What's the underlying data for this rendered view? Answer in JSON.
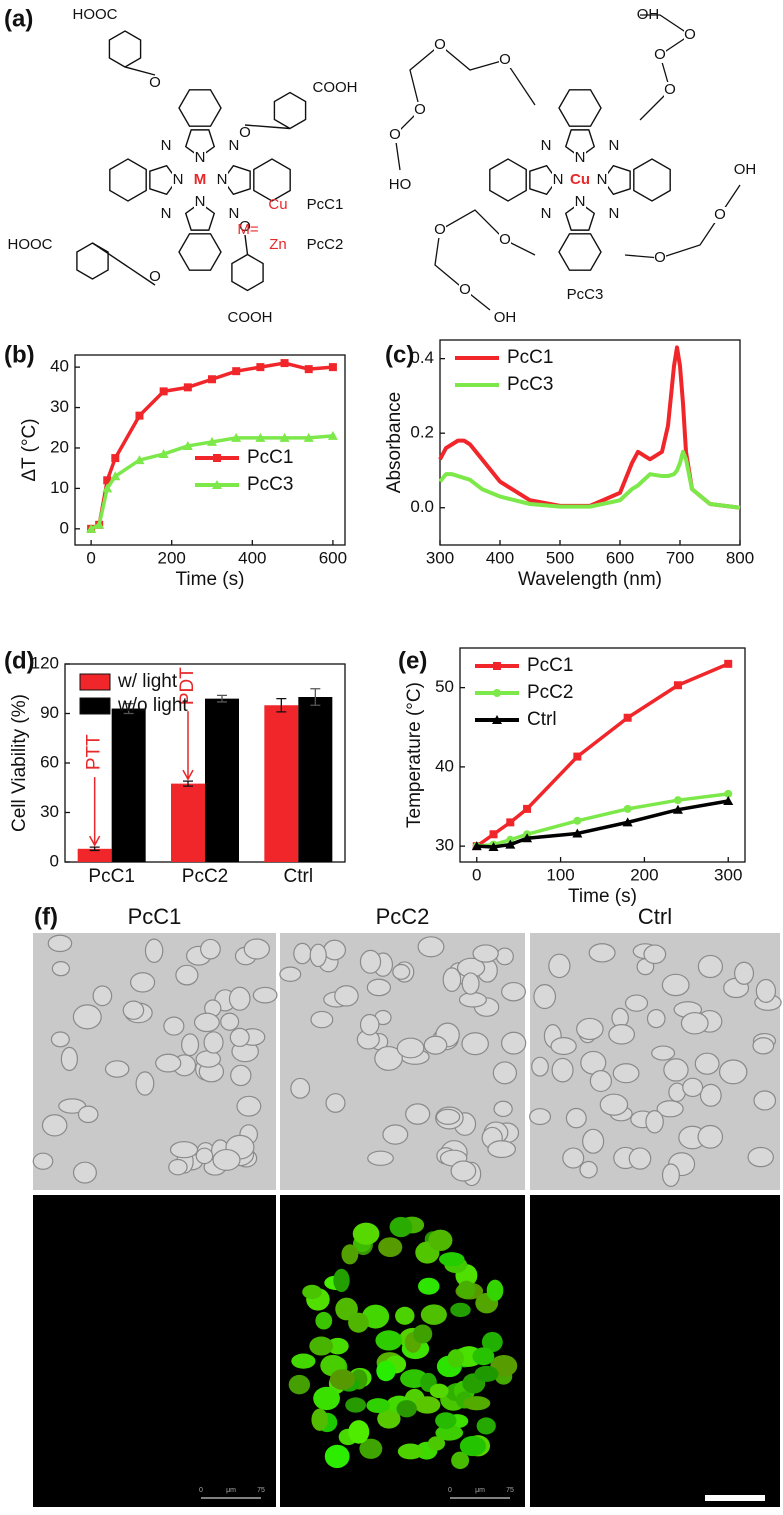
{
  "structures": {
    "label": "(a)",
    "left": {
      "groups": [
        "HOOC",
        "COOH",
        "HOOC",
        "COOH"
      ],
      "metal": "M",
      "equals": "M=",
      "metal_options": [
        "Cu",
        "Zn"
      ],
      "names": [
        "PcC1",
        "PcC2"
      ],
      "ring_atoms": [
        "N",
        "N",
        "N",
        "N",
        "N",
        "N",
        "N",
        "N"
      ],
      "linkers": [
        "O",
        "O",
        "O",
        "O"
      ]
    },
    "right": {
      "groups": [
        "HO",
        "OH",
        "OH",
        "OH"
      ],
      "metal": "Cu",
      "name": "PcC3",
      "ring_atoms": [
        "N",
        "N",
        "N",
        "N",
        "N",
        "N",
        "N",
        "N"
      ],
      "linkers": [
        "O",
        "O",
        "O",
        "O",
        "O",
        "O",
        "O",
        "O",
        "O",
        "O",
        "O",
        "O"
      ]
    }
  },
  "chart_data": [
    {
      "type": "line",
      "panel_label": "(b)",
      "x_label": "Time (s)",
      "y_label": "ΔT (°C)",
      "x": [
        0,
        20,
        40,
        60,
        120,
        180,
        240,
        300,
        360,
        420,
        480,
        540,
        600
      ],
      "series": [
        {
          "name": "PcC1",
          "color": "#f0262a",
          "marker": "square",
          "values": [
            0,
            1,
            12,
            17.5,
            28,
            34,
            35,
            37,
            39,
            40,
            41,
            39.5,
            40
          ]
        },
        {
          "name": "PcC3",
          "color": "#7de84a",
          "marker": "triangle",
          "values": [
            0,
            1,
            10,
            13,
            17,
            18.5,
            20.5,
            21.5,
            22.5,
            22.5,
            22.5,
            22.5,
            23
          ]
        }
      ],
      "xlim": [
        -40,
        630
      ],
      "ylim": [
        -4,
        43
      ],
      "xticks": [
        0,
        200,
        400,
        600
      ],
      "yticks": [
        0,
        10,
        20,
        30,
        40
      ],
      "legend": "lower right"
    },
    {
      "type": "line",
      "panel_label": "(c)",
      "x_label": "Wavelength (nm)",
      "y_label": "Absorbance",
      "x": [
        300,
        310,
        320,
        330,
        340,
        350,
        370,
        400,
        450,
        500,
        550,
        600,
        620,
        630,
        650,
        670,
        680,
        690,
        695,
        700,
        705,
        710,
        720,
        750,
        800
      ],
      "series": [
        {
          "name": "PcC1",
          "color": "#f0262a",
          "marker": "none",
          "values": [
            0.13,
            0.16,
            0.17,
            0.18,
            0.18,
            0.17,
            0.13,
            0.07,
            0.02,
            0.005,
            0.005,
            0.04,
            0.12,
            0.15,
            0.13,
            0.15,
            0.22,
            0.38,
            0.43,
            0.38,
            0.28,
            0.15,
            0.05,
            0.01,
            0
          ]
        },
        {
          "name": "PcC3",
          "color": "#7de84a",
          "marker": "none",
          "values": [
            0.07,
            0.09,
            0.09,
            0.085,
            0.08,
            0.075,
            0.05,
            0.03,
            0.01,
            0.003,
            0.003,
            0.02,
            0.05,
            0.06,
            0.09,
            0.085,
            0.085,
            0.09,
            0.1,
            0.12,
            0.15,
            0.13,
            0.05,
            0.01,
            0
          ]
        }
      ],
      "xlim": [
        300,
        800
      ],
      "ylim": [
        -0.1,
        0.45
      ],
      "xticks": [
        300,
        400,
        500,
        600,
        700,
        800
      ],
      "yticks": [
        {
          "value": 0,
          "label": "0.0"
        },
        0.2,
        0.4
      ],
      "legend": "upper left"
    },
    {
      "type": "bar",
      "panel_label": "(d)",
      "y_label": "Cell Viability (%)",
      "categories": [
        "PcC1",
        "PcC2",
        "Ctrl"
      ],
      "series": [
        {
          "name": "w/ light",
          "color": "#f0262a",
          "values": [
            8,
            47.5,
            95
          ],
          "errors": [
            1,
            1.5,
            4
          ]
        },
        {
          "name": "w/o light",
          "color": "#000000",
          "values": [
            93,
            99,
            100
          ],
          "errors": [
            3,
            2,
            5
          ]
        }
      ],
      "annotations": [
        "PTT",
        "PDT"
      ],
      "ylim": [
        0,
        120
      ],
      "yticks": [
        0,
        30,
        60,
        90,
        120
      ],
      "legend": "upper left"
    },
    {
      "type": "line",
      "panel_label": "(e)",
      "x_label": "Time (s)",
      "y_label": "Temperature (°C)",
      "x": [
        0,
        20,
        40,
        60,
        120,
        180,
        240,
        300
      ],
      "series": [
        {
          "name": "PcC1",
          "color": "#f0262a",
          "marker": "square",
          "values": [
            30,
            31.5,
            33,
            34.7,
            41.3,
            46.2,
            50.3,
            53
          ]
        },
        {
          "name": "PcC2",
          "color": "#7de84a",
          "marker": "circle",
          "values": [
            30,
            30.2,
            30.8,
            31.5,
            33.2,
            34.7,
            35.8,
            36.6
          ]
        },
        {
          "name": "Ctrl",
          "color": "#000000",
          "marker": "triangle",
          "values": [
            30,
            29.9,
            30.2,
            31,
            31.6,
            33,
            34.6,
            35.7
          ]
        }
      ],
      "xlim": [
        -20,
        320
      ],
      "ylim": [
        28,
        55
      ],
      "xticks": [
        0,
        100,
        200,
        300
      ],
      "yticks": [
        30,
        40,
        50
      ],
      "legend": "upper left"
    }
  ],
  "micrographs": {
    "label": "(f)",
    "columns": [
      "PcC1",
      "PcC2",
      "Ctrl"
    ],
    "scale_bar": [
      "0",
      "μm",
      "75"
    ]
  }
}
